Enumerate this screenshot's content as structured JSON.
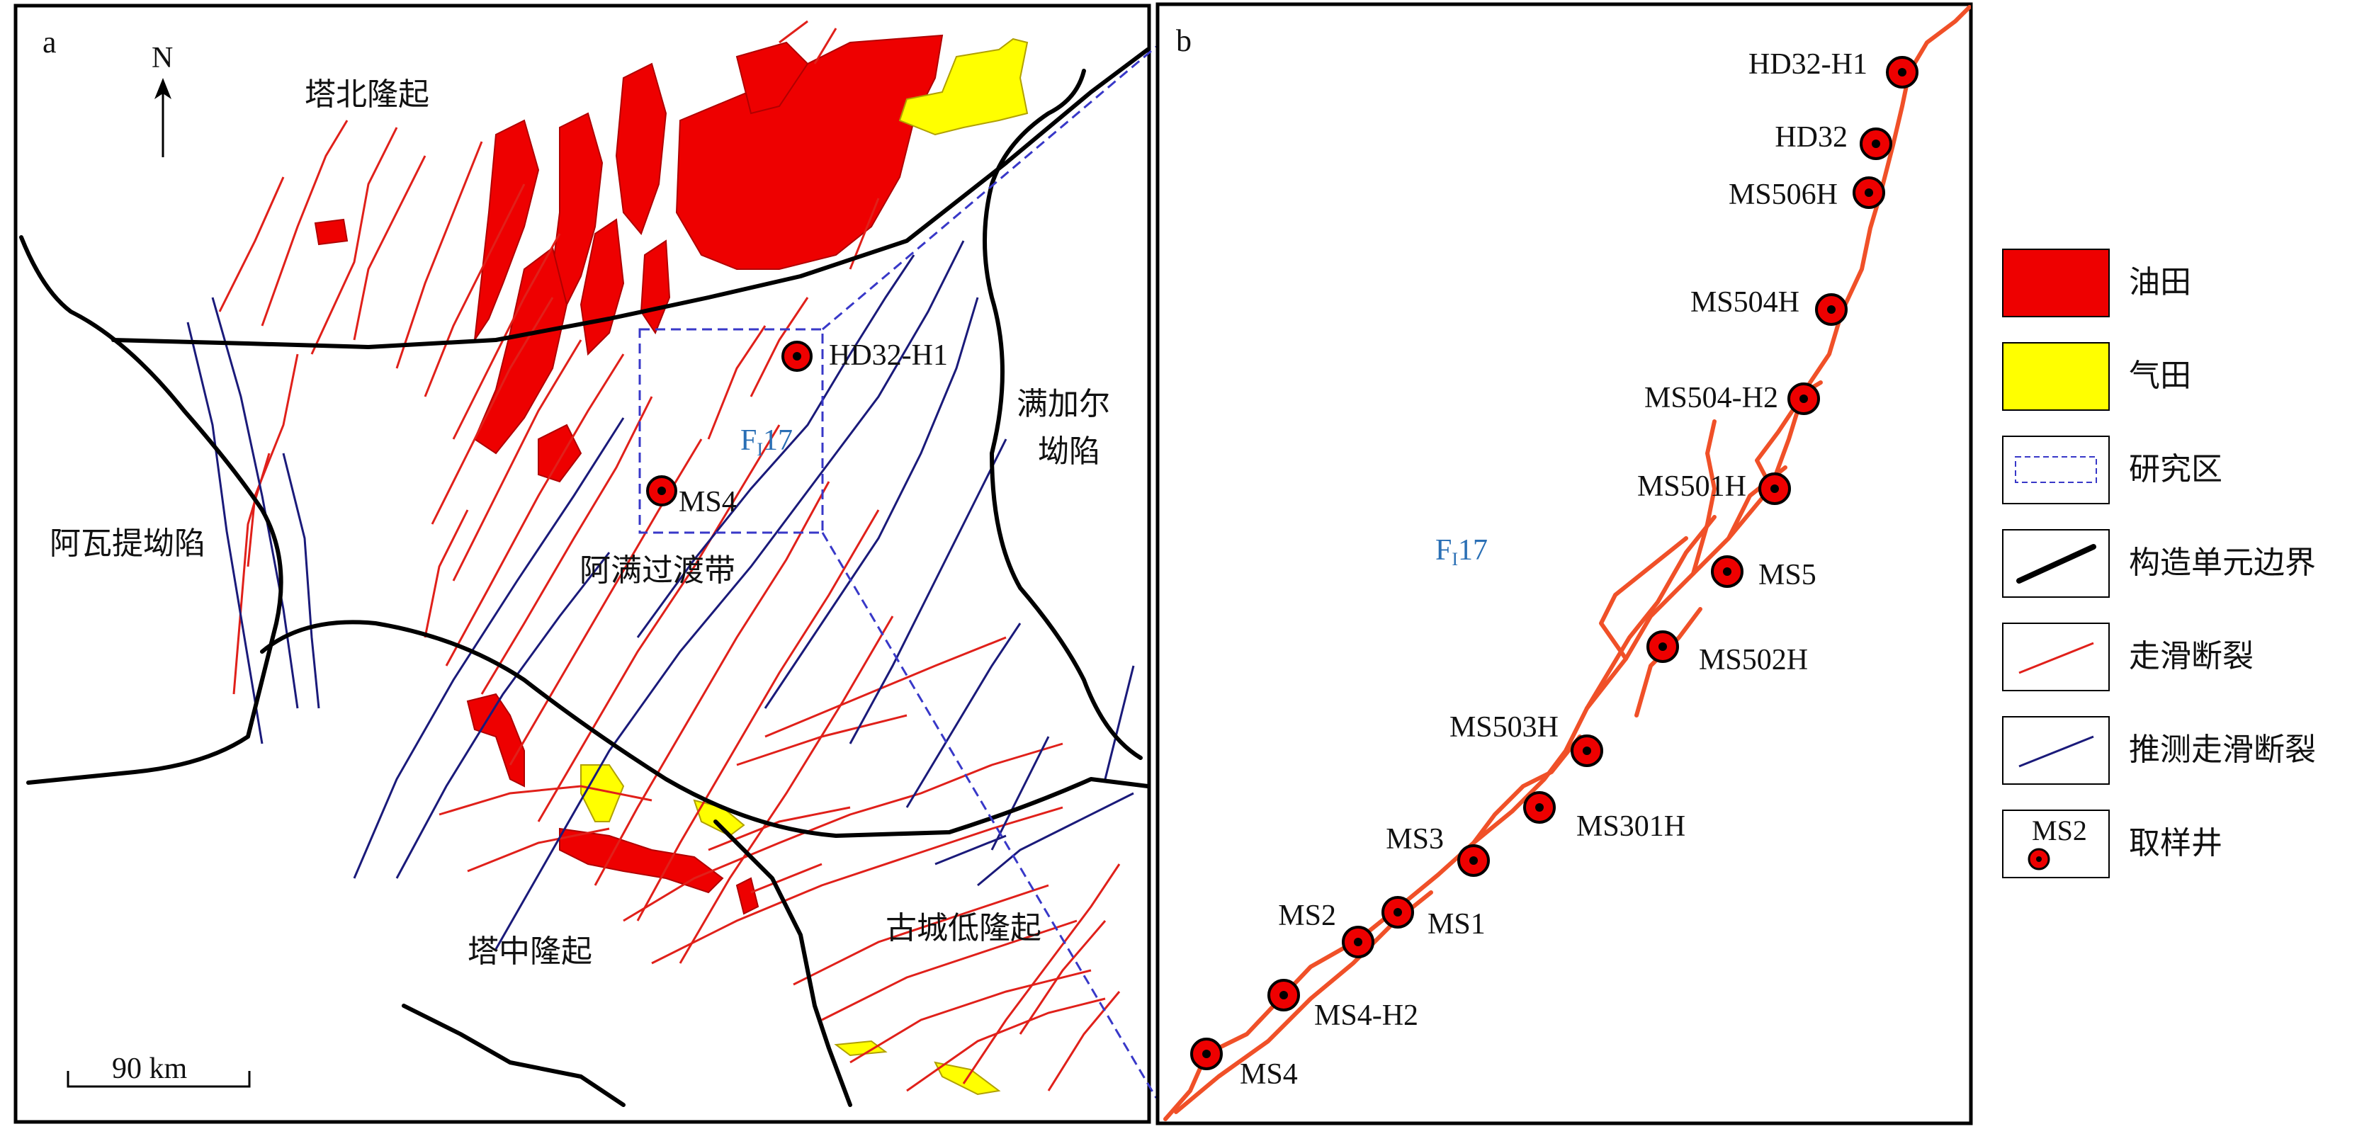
{
  "panel_a": {
    "panel_letter": "a",
    "north": "N",
    "regions": {
      "tabei": "塔北隆起",
      "awati": "阿瓦提坳陷",
      "aman": "阿满过渡带",
      "manjiaer_1": "满加尔",
      "manjiaer_2": "坳陷",
      "tazhong": "塔中隆起",
      "gucheng": "古城低隆起"
    },
    "wells": [
      "HD32-H1",
      "MS4"
    ],
    "fault_main": "F",
    "fault_sub": "I",
    "fault_num": "17",
    "scale": "90 km"
  },
  "panel_b": {
    "panel_letter": "b",
    "fault_main": "F",
    "fault_sub": "I",
    "fault_num": "17",
    "wells": [
      "HD32-H1",
      "HD32",
      "MS506H",
      "MS504H",
      "MS504-H2",
      "MS501H",
      "MS5",
      "MS502H",
      "MS503H",
      "MS301H",
      "MS3",
      "MS1",
      "MS2",
      "MS4-H2",
      "MS4"
    ]
  },
  "legend": {
    "items": [
      {
        "name": "oilfield",
        "label": "油田",
        "color": "#ee0000"
      },
      {
        "name": "gasfield",
        "label": "气田",
        "color": "#ffff00"
      },
      {
        "name": "study-area",
        "label": "研究区"
      },
      {
        "name": "tectonic-boundary",
        "label": "构造单元边界"
      },
      {
        "name": "strike-slip-fault",
        "label": "走滑断裂",
        "color": "#e0201a"
      },
      {
        "name": "inferred-fault",
        "label": "推测走滑断裂",
        "color": "#1a1a7a"
      },
      {
        "name": "sampling-well",
        "label": "取样井"
      }
    ],
    "well_sample": "MS2"
  }
}
